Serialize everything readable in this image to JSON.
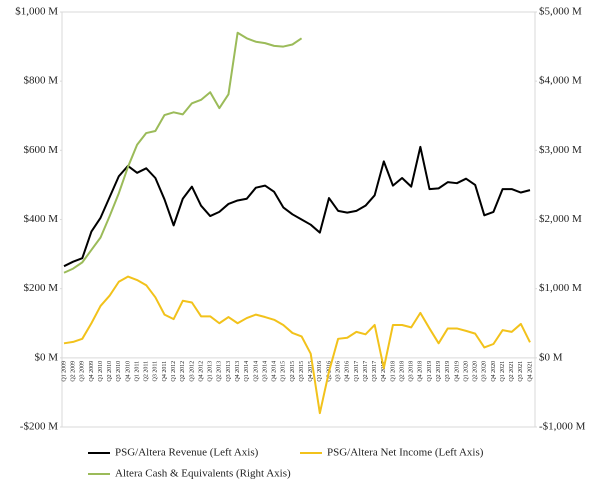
{
  "chart_data": {
    "type": "line",
    "categories": [
      "Q1 2009",
      "Q2 2009",
      "Q3 2009",
      "Q4 2009",
      "Q1 2010",
      "Q2 2010",
      "Q3 2010",
      "Q4 2010",
      "Q1 2011",
      "Q2 2011",
      "Q3 2011",
      "Q4 2011",
      "Q1 2012",
      "Q2 2012",
      "Q3 2012",
      "Q4 2012",
      "Q1 2013",
      "Q2 2013",
      "Q3 2013",
      "Q4 2013",
      "Q1 2014",
      "Q2 2014",
      "Q3 2014",
      "Q4 2014",
      "Q1 2015",
      "Q2 2015",
      "Q3 2015",
      "Q4 2015",
      "Q1 2016",
      "Q2 2016",
      "Q3 2016",
      "Q4 2016",
      "Q1 2017",
      "Q2 2017",
      "Q3 2017",
      "Q4 2017",
      "Q1 2018",
      "Q2 2018",
      "Q3 2018",
      "Q4 2018",
      "Q1 2019",
      "Q2 2019",
      "Q3 2019",
      "Q4 2019",
      "Q1 2020",
      "Q2 2020",
      "Q3 2020",
      "Q4 2020",
      "Q1 2021",
      "Q2 2021",
      "Q3 2021",
      "Q4 2021"
    ],
    "series": [
      {
        "name": "PSG/Altera Revenue (Left Axis)",
        "color": "#000000",
        "axis": "y",
        "values": [
          265,
          278,
          288,
          365,
          405,
          465,
          525,
          555,
          535,
          548,
          520,
          458,
          383,
          460,
          495,
          440,
          410,
          422,
          445,
          455,
          460,
          492,
          498,
          480,
          435,
          415,
          400,
          385,
          362,
          462,
          425,
          420,
          425,
          440,
          470,
          568,
          498,
          520,
          495,
          610,
          488,
          490,
          508,
          505,
          518,
          500,
          412,
          422,
          488,
          488,
          478,
          485
        ]
      },
      {
        "name": "PSG/Altera Net Income (Left Axis)",
        "color": "#f2c21b",
        "axis": "y",
        "values": [
          42,
          46,
          55,
          100,
          150,
          180,
          220,
          235,
          225,
          210,
          175,
          125,
          112,
          165,
          160,
          120,
          120,
          100,
          118,
          100,
          115,
          125,
          118,
          110,
          95,
          72,
          62,
          12,
          -160,
          -40,
          55,
          58,
          75,
          68,
          95,
          -30,
          95,
          95,
          88,
          130,
          85,
          42,
          85,
          85,
          78,
          70,
          30,
          40,
          80,
          75,
          98,
          45
        ]
      },
      {
        "name": "Altera Cash & Equivalents (Right Axis)",
        "color": "#9bbb59",
        "axis": "y2",
        "values": [
          1230,
          1290,
          1380,
          1560,
          1740,
          2050,
          2380,
          2760,
          3080,
          3250,
          3280,
          3510,
          3550,
          3520,
          3680,
          3730,
          3840,
          3610,
          3810,
          4700,
          4620,
          4570,
          4550,
          4510,
          4500,
          4530,
          4620,
          null,
          null,
          null,
          null,
          null,
          null,
          null,
          null,
          null,
          null,
          null,
          null,
          null,
          null,
          null,
          null,
          null,
          null,
          null,
          null,
          null,
          null,
          null,
          null,
          null
        ]
      }
    ],
    "ylim": [
      -200,
      1000
    ],
    "yticks": [
      {
        "value": -200,
        "label": "-$200 M"
      },
      {
        "value": 0,
        "label": "$0 M"
      },
      {
        "value": 200,
        "label": "$200 M"
      },
      {
        "value": 400,
        "label": "$400 M"
      },
      {
        "value": 600,
        "label": "$600 M"
      },
      {
        "value": 800,
        "label": "$800 M"
      },
      {
        "value": 1000,
        "label": "$1,000 M"
      }
    ],
    "y2lim": [
      -1000,
      5000
    ],
    "y2ticks": [
      {
        "value": -1000,
        "label": "-$1,000 M"
      },
      {
        "value": 0,
        "label": "$0 M"
      },
      {
        "value": 1000,
        "label": "$1,000 M"
      },
      {
        "value": 2000,
        "label": "$2,000 M"
      },
      {
        "value": 3000,
        "label": "$3,000 M"
      },
      {
        "value": 4000,
        "label": "$4,000 M"
      },
      {
        "value": 5000,
        "label": "$5,000 M"
      }
    ]
  }
}
